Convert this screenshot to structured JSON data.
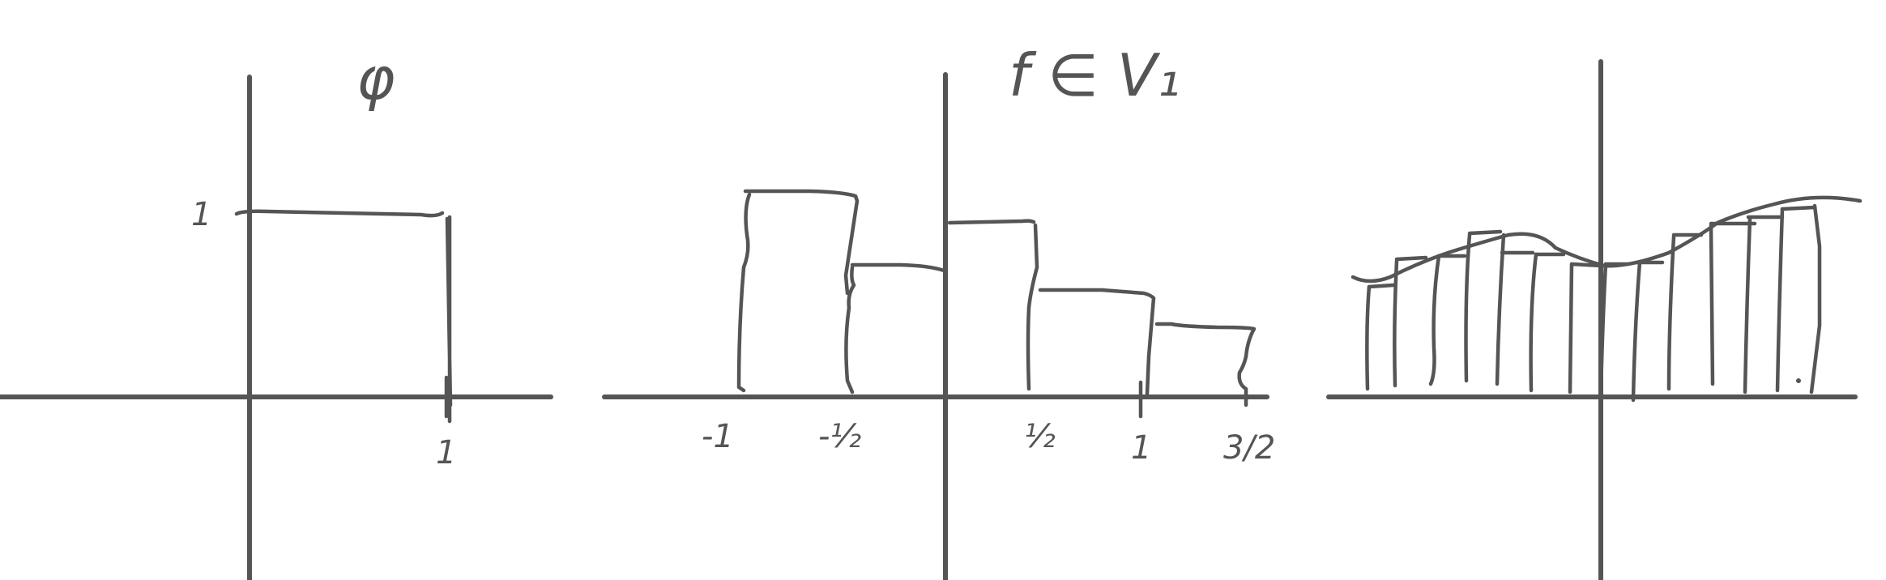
{
  "panels": {
    "left": {
      "title": "φ",
      "y_tick": "1",
      "x_tick": "1"
    },
    "middle": {
      "title": "f ∈ V₁",
      "x_ticks": [
        "-1",
        "-½",
        "½",
        "1",
        "3/2"
      ]
    },
    "right": {
      "title": ""
    }
  },
  "colors": {
    "ink": "#555555",
    "background": "#ffffff"
  }
}
